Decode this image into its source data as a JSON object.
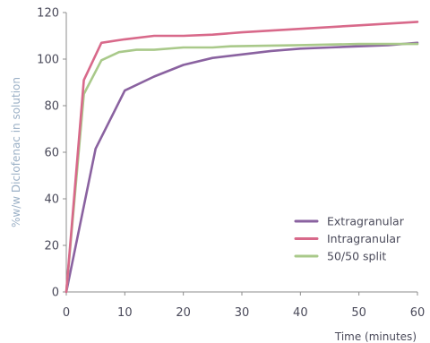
{
  "chart_data": {
    "type": "line",
    "title": "",
    "xlabel": "Time (minutes)",
    "ylabel": "%w/w Diclofenac in solution",
    "xlim": [
      0,
      60
    ],
    "ylim": [
      0,
      120
    ],
    "xticks": [
      "0",
      "10",
      "20",
      "30",
      "40",
      "50",
      "60"
    ],
    "yticks": [
      "0",
      "20",
      "40",
      "60",
      "80",
      "100",
      "120"
    ],
    "grid": false,
    "legend_position": "bottom-right",
    "series": [
      {
        "name": "Extragranular",
        "color": "#8a62a0",
        "points": [
          [
            0,
            0
          ],
          [
            5,
            61.5
          ],
          [
            10,
            86.5
          ],
          [
            15,
            92.5
          ],
          [
            20,
            97.5
          ],
          [
            25,
            100.5
          ],
          [
            30,
            102
          ],
          [
            35,
            103.5
          ],
          [
            40,
            104.5
          ],
          [
            45,
            105
          ],
          [
            50,
            105.5
          ],
          [
            55,
            106
          ],
          [
            60,
            107
          ]
        ]
      },
      {
        "name": "Intragranular",
        "color": "#d8698a",
        "points": [
          [
            0,
            0
          ],
          [
            3,
            91
          ],
          [
            6,
            107
          ],
          [
            10,
            108.5
          ],
          [
            15,
            110
          ],
          [
            20,
            110
          ],
          [
            25,
            110.5
          ],
          [
            30,
            111.5
          ],
          [
            40,
            113
          ],
          [
            50,
            114.5
          ],
          [
            60,
            116
          ]
        ]
      },
      {
        "name": "50/50 split",
        "color": "#a9c98a",
        "points": [
          [
            0,
            0
          ],
          [
            3,
            85
          ],
          [
            6,
            99.5
          ],
          [
            9,
            103
          ],
          [
            12,
            104
          ],
          [
            15,
            104
          ],
          [
            20,
            105
          ],
          [
            25,
            105
          ],
          [
            28,
            105.5
          ],
          [
            40,
            106
          ],
          [
            50,
            106.5
          ],
          [
            60,
            106.5
          ]
        ]
      }
    ]
  }
}
